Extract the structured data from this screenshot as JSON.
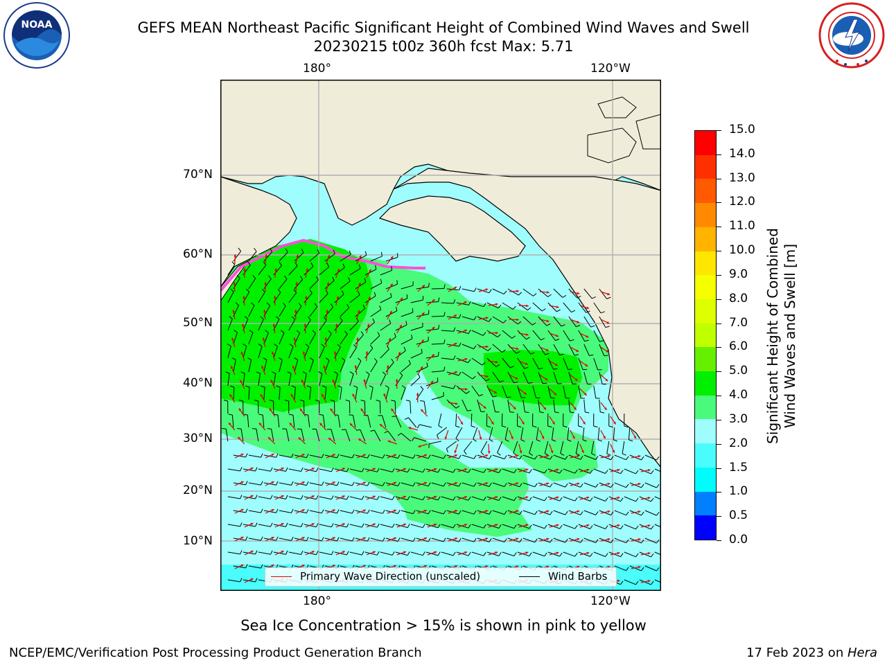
{
  "header": {
    "title_line1": "GEFS MEAN Northeast Pacific Significant Height of Combined Wind Waves and Swell",
    "title_line2": "20230215 t00z 360h fcst   Max: 5.71"
  },
  "logos": {
    "noaa": {
      "icon": "noaa-logo-icon",
      "text": "NOAA"
    },
    "nws": {
      "icon": "nws-logo-icon"
    }
  },
  "map": {
    "lon_labels_top": [
      "180°",
      "120°W"
    ],
    "lon_labels_bottom": [
      "180°",
      "120°W"
    ],
    "lat_labels": [
      "70°N",
      "60°N",
      "50°N",
      "40°N",
      "30°N",
      "20°N",
      "10°N"
    ],
    "land_color": "#efedda",
    "colors": {
      "ocean_lt2": "#9ffdfd",
      "ocean_2_3": "#9ffdfd",
      "ocean_3_4": "#4afa7a",
      "ocean_4_5": "#00f000",
      "ice_pink": "#ff4fd8",
      "wave_arrow": "#e00000",
      "wind_barb": "#000000"
    }
  },
  "legend": {
    "wave_label": "Primary Wave Direction (unscaled)",
    "barb_label": "Wind Barbs"
  },
  "colorbar": {
    "title_line1": "Significant Height of Combined",
    "title_line2": "Wind Waves and Swell [m]",
    "ticks": [
      "15.0",
      "14.0",
      "13.0",
      "12.0",
      "11.0",
      "10.0",
      "9.0",
      "8.0",
      "7.0",
      "6.0",
      "5.0",
      "4.0",
      "3.0",
      "2.0",
      "1.5",
      "1.0",
      "0.5",
      "0.0"
    ],
    "segments": [
      {
        "from": 14,
        "to": 15,
        "color": "#ff0000"
      },
      {
        "from": 13,
        "to": 14,
        "color": "#ff3000"
      },
      {
        "from": 12,
        "to": 13,
        "color": "#ff5a00"
      },
      {
        "from": 11,
        "to": 12,
        "color": "#ff8a00"
      },
      {
        "from": 10,
        "to": 11,
        "color": "#ffb400"
      },
      {
        "from": 9,
        "to": 10,
        "color": "#ffe600"
      },
      {
        "from": 8,
        "to": 9,
        "color": "#f5ff00"
      },
      {
        "from": 7,
        "to": 8,
        "color": "#ddff00"
      },
      {
        "from": 6,
        "to": 7,
        "color": "#c0ff00"
      },
      {
        "from": 5,
        "to": 6,
        "color": "#66f000"
      },
      {
        "from": 4,
        "to": 5,
        "color": "#00f000"
      },
      {
        "from": 3,
        "to": 4,
        "color": "#4afa7a"
      },
      {
        "from": 2,
        "to": 3,
        "color": "#9ffdfd"
      },
      {
        "from": 1.5,
        "to": 2,
        "color": "#4afcfc"
      },
      {
        "from": 1,
        "to": 1.5,
        "color": "#00fcfc"
      },
      {
        "from": 0.5,
        "to": 1,
        "color": "#0080ff"
      },
      {
        "from": 0,
        "to": 0.5,
        "color": "#0000ff"
      }
    ]
  },
  "footer": {
    "ice_note": "Sea Ice Concentration > 15% is shown in pink to yellow",
    "branch": "NCEP/EMC/Verification Post Processing Product Generation Branch",
    "date_prefix": "17 Feb 2023 on ",
    "machine": "Hera"
  }
}
